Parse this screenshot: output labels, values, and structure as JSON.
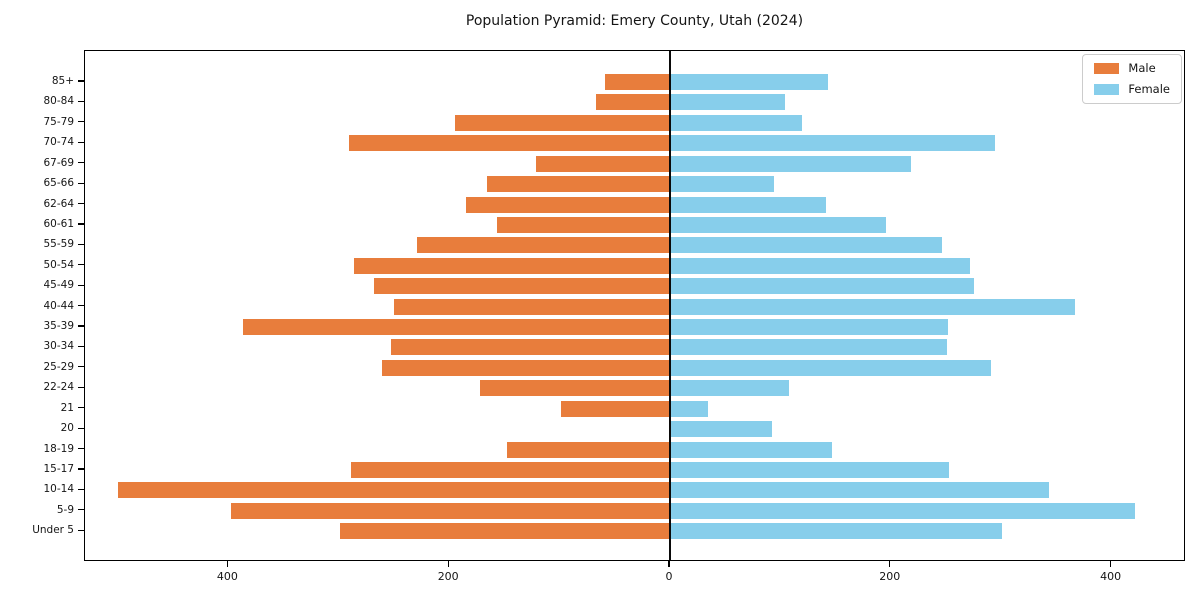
{
  "title": "Population Pyramid: Emery County, Utah (2024)",
  "colors": {
    "male": "#e87d3c",
    "female": "#87ceeb",
    "axis_line": "#000000",
    "legend_border": "#cccccc"
  },
  "legend": {
    "entries": [
      "Male",
      "Female"
    ],
    "position": "upper-right"
  },
  "chart_data": {
    "type": "bar",
    "subtype": "population-pyramid",
    "title": "Population Pyramid: Emery County, Utah (2024)",
    "categories": [
      "85+",
      "80-84",
      "75-79",
      "70-74",
      "67-69",
      "65-66",
      "62-64",
      "60-61",
      "55-59",
      "50-54",
      "45-49",
      "40-44",
      "35-39",
      "30-34",
      "25-29",
      "22-24",
      "21",
      "20",
      "18-19",
      "15-17",
      "10-14",
      "5-9",
      "Under 5"
    ],
    "series": [
      {
        "name": "Male",
        "side": "left",
        "color": "#e87d3c",
        "values": [
          59,
          67,
          195,
          291,
          121,
          166,
          185,
          157,
          229,
          286,
          268,
          250,
          387,
          253,
          261,
          172,
          99,
          0,
          148,
          289,
          500,
          398,
          299
        ]
      },
      {
        "name": "Female",
        "side": "right",
        "color": "#87ceeb",
        "values": [
          143,
          104,
          120,
          294,
          218,
          94,
          141,
          196,
          246,
          272,
          275,
          367,
          252,
          251,
          291,
          108,
          34,
          92,
          147,
          253,
          343,
          421,
          301
        ]
      }
    ],
    "x_axis": {
      "tick_values": [
        -400,
        -200,
        0,
        200,
        400
      ],
      "tick_labels": [
        "400",
        "200",
        "0",
        "200",
        "400"
      ],
      "xlim": [
        -530,
        467
      ]
    },
    "grid": false,
    "legend_position": "upper right"
  }
}
